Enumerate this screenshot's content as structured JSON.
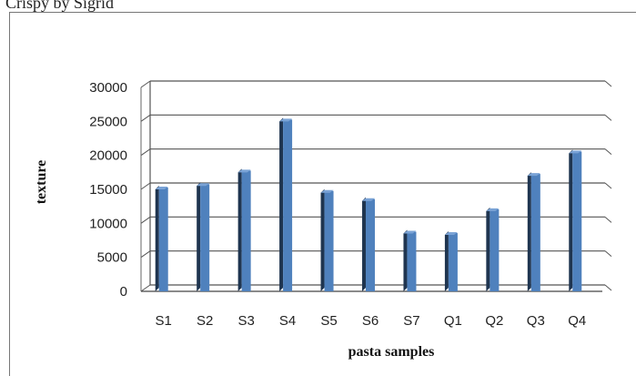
{
  "header": {
    "text": "Crispy by Sigrid"
  },
  "chart_data": {
    "type": "bar",
    "title": "",
    "xlabel": "pasta samples",
    "ylabel": "texture",
    "categories": [
      "S1",
      "S2",
      "S3",
      "S4",
      "S5",
      "S6",
      "S7",
      "Q1",
      "Q2",
      "Q3",
      "Q4"
    ],
    "values": [
      15000,
      15500,
      17500,
      25000,
      14500,
      13300,
      8500,
      8300,
      11800,
      17000,
      20300
    ],
    "ylim": [
      0,
      30000
    ],
    "yticks": [
      "0",
      "5000",
      "10000",
      "15000",
      "20000",
      "25000",
      "30000"
    ],
    "grid": true,
    "legend": "none",
    "bar_color": "#4f81bd",
    "bar_shadow_color": "#1f3550"
  }
}
